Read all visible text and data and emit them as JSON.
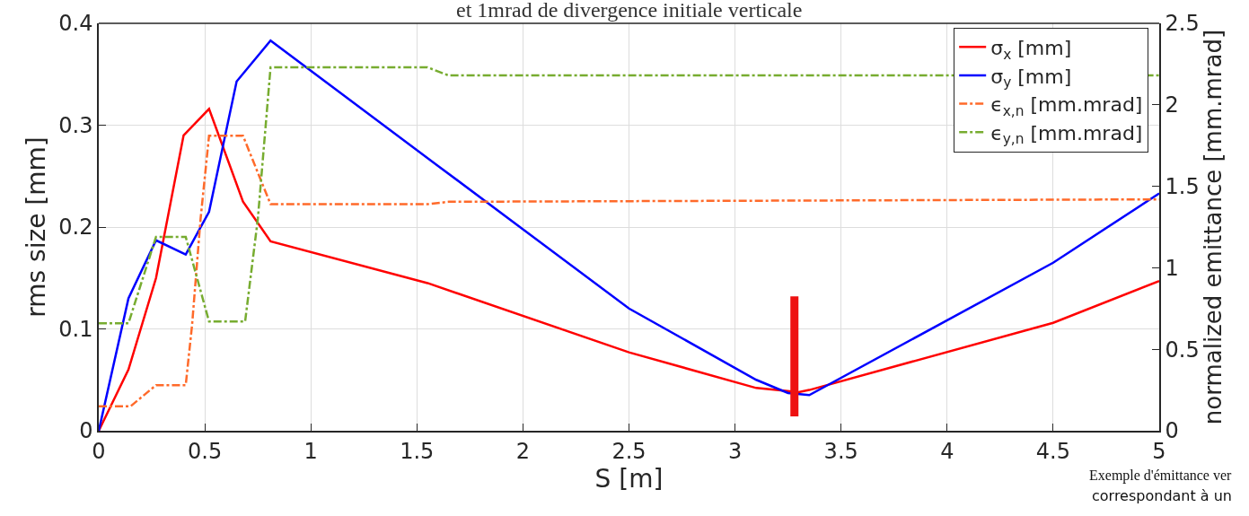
{
  "chart_data": {
    "type": "line",
    "title": "et 1mrad de divergence initiale verticale",
    "xlabel": "S [m]",
    "ylabel": "rms size [mm]",
    "y2label": "normalized emittance [mm.mrad]",
    "annotations": [
      "Exemple d'émittance ver",
      "correspondant à un"
    ],
    "xlim": [
      0,
      5
    ],
    "xticks": [
      0,
      0.5,
      1,
      1.5,
      2,
      2.5,
      3,
      3.5,
      4,
      4.5,
      5
    ],
    "ylim": [
      0,
      0.4
    ],
    "yticks": [
      0,
      0.1,
      0.2,
      0.3,
      0.4
    ],
    "y2lim": [
      0,
      2.5
    ],
    "y2ticks": [
      0,
      0.5,
      1,
      1.5,
      2,
      2.5
    ],
    "grid": true,
    "legend": "top right",
    "ref_lines": [
      {
        "axis": "x",
        "value": 3.28,
        "color": "#ee1111"
      }
    ],
    "series": [
      {
        "name": "σ$_{x}$ [mm]",
        "color": "#ff0000",
        "line_style": "solid",
        "x": [
          0,
          0.14,
          0.27,
          0.4,
          0.52,
          0.68,
          0.81,
          1.55,
          2.5,
          3.1,
          3.3,
          3.35,
          4.5,
          5
        ],
        "values": [
          0,
          0.06,
          0.15,
          0.29,
          0.316,
          0.225,
          0.186,
          0.145,
          0.077,
          0.042,
          0.038,
          0.04,
          0.106,
          0.147
        ]
      },
      {
        "name": "σ$_{y}$ [mm]",
        "color": "#0000ff",
        "line_style": "solid",
        "x": [
          0,
          0.14,
          0.27,
          0.41,
          0.52,
          0.65,
          0.81,
          1.6,
          2.5,
          3.1,
          3.25,
          3.35,
          4.5,
          5
        ],
        "values": [
          0,
          0.13,
          0.187,
          0.173,
          0.215,
          0.343,
          0.383,
          0.26,
          0.12,
          0.05,
          0.037,
          0.035,
          0.165,
          0.233
        ]
      },
      {
        "name": "ϵ$_{x,n}$ [mm.mrad]",
        "color": "#ff6a2a",
        "line_style": "dashdot",
        "axis": "y2",
        "x": [
          0,
          0.15,
          0.27,
          0.41,
          0.44,
          0.48,
          0.52,
          0.68,
          0.81,
          1.55,
          1.65,
          5
        ],
        "values": [
          0.15,
          0.15,
          0.28,
          0.28,
          0.65,
          1.3,
          1.81,
          1.81,
          1.39,
          1.39,
          1.405,
          1.42
        ]
      },
      {
        "name": "ϵ$_{y,n}$ [mm.mrad]",
        "color": "#77ac30",
        "line_style": "dashdot",
        "axis": "y2",
        "x": [
          0,
          0.14,
          0.27,
          0.41,
          0.52,
          0.69,
          0.75,
          0.81,
          1.55,
          1.65,
          5
        ],
        "values": [
          0.66,
          0.66,
          1.19,
          1.19,
          0.67,
          0.67,
          1.3,
          2.23,
          2.23,
          2.18,
          2.18
        ]
      }
    ]
  }
}
